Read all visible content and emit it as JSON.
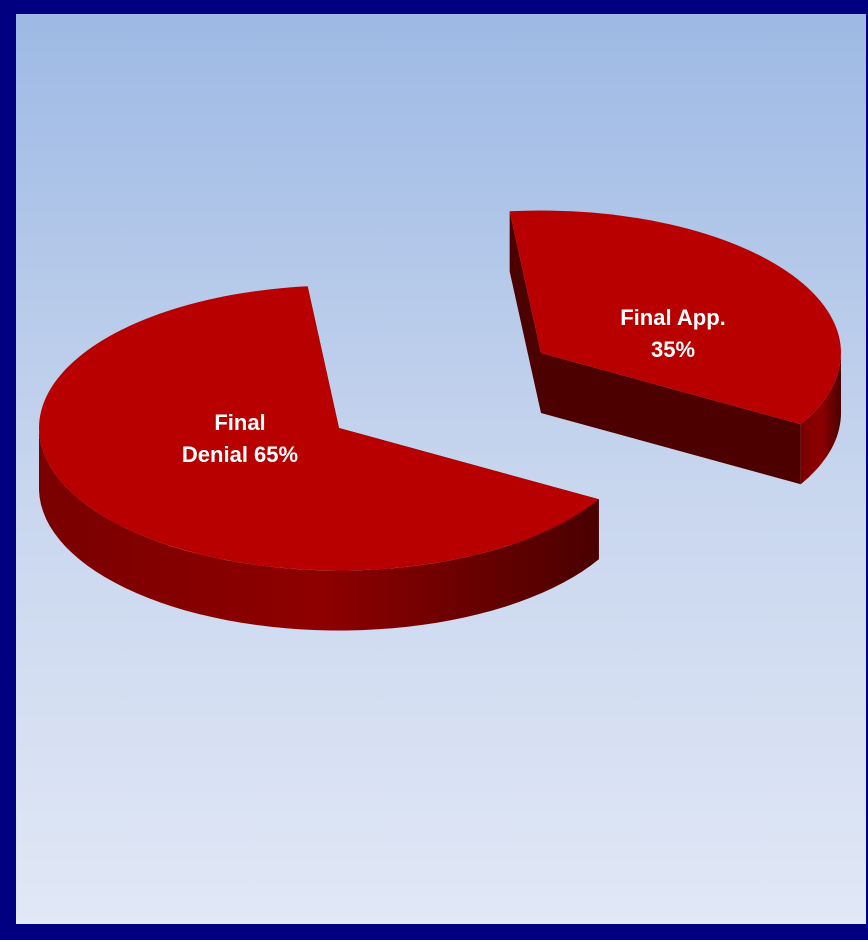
{
  "chart_data": {
    "type": "pie",
    "title": "",
    "style": "3d-exploded",
    "slices": [
      {
        "name": "Final Denial",
        "value": 65,
        "label_lines": [
          "Final",
          "Denial 65%"
        ]
      },
      {
        "name": "Final App.",
        "value": 35,
        "label_lines": [
          "Final App.",
          "35%"
        ]
      }
    ],
    "colors": {
      "top": "#b80000",
      "side_light": "#8a0000",
      "side_dark": "#4d0000",
      "frame": "#000080"
    }
  }
}
